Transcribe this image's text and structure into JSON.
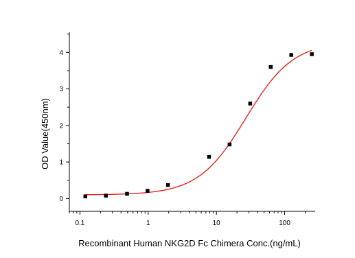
{
  "chart_data": {
    "type": "scatter",
    "title": "",
    "xlabel": "Recombinant Human NKG2D Fc Chimera Conc.(ng/mL)",
    "ylabel": "OD Value(450nm)",
    "xscale": "log",
    "xlim": [
      0.07,
      280
    ],
    "ylim": [
      -0.35,
      4.55
    ],
    "xticks": [
      0.1,
      1,
      10,
      100
    ],
    "xtick_labels": [
      "0.1",
      "1",
      "10",
      "100"
    ],
    "yticks": [
      0,
      1,
      2,
      3,
      4
    ],
    "ytick_labels": [
      "0",
      "1",
      "2",
      "3",
      "4"
    ],
    "grid": false,
    "legend": "none",
    "points": {
      "x": [
        0.12,
        0.24,
        0.49,
        0.98,
        1.95,
        7.8,
        15.6,
        31.25,
        62.5,
        125,
        250
      ],
      "y": [
        0.06,
        0.08,
        0.13,
        0.21,
        0.37,
        1.14,
        1.48,
        2.6,
        3.6,
        3.93,
        3.95
      ],
      "color": "#000000"
    },
    "fit_curve": {
      "model": "4PL",
      "bottom": 0.1,
      "top": 4.3,
      "ec50": 27,
      "hill": 1.25,
      "color": "#e8201f"
    }
  }
}
